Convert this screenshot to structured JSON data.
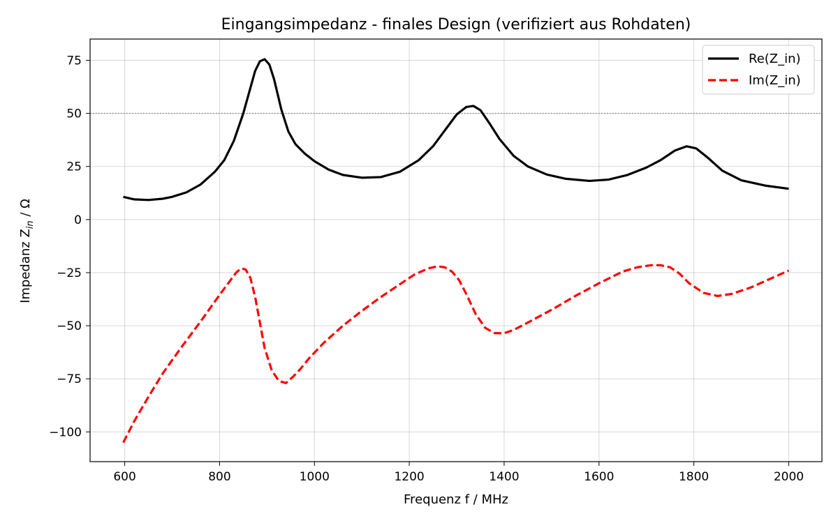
{
  "chart_data": {
    "type": "line",
    "title": "Eingangsimpedanz - finales Design (verifiziert aus Rohdaten)",
    "xlabel": "Frequenz f / MHz",
    "ylabel_main": "Impedanz Z",
    "ylabel_sub": "in",
    "ylabel_unit": " / Ω",
    "xlim": [
      527,
      2070
    ],
    "ylim": [
      -114,
      85
    ],
    "x_ticks": [
      600,
      800,
      1000,
      1200,
      1400,
      1600,
      1800,
      2000
    ],
    "x_tick_labels": [
      "600",
      "800",
      "1000",
      "1200",
      "1400",
      "1600",
      "1800",
      "2000"
    ],
    "y_ticks": [
      75,
      50,
      25,
      0,
      -25,
      -50,
      -75,
      -100
    ],
    "y_tick_labels": [
      "75",
      "50",
      "25",
      "0",
      "−25",
      "−50",
      "−75",
      "−100"
    ],
    "grid": true,
    "reference_line": {
      "y": 50,
      "color": "#808080",
      "style": "dotted"
    },
    "legend_position": "top-right",
    "series": [
      {
        "name": "Re(Z_in)",
        "color": "#000000",
        "style": "solid",
        "x": [
          597,
          620,
          650,
          680,
          700,
          730,
          760,
          790,
          810,
          830,
          850,
          865,
          875,
          885,
          895,
          905,
          915,
          930,
          945,
          960,
          980,
          1000,
          1030,
          1060,
          1100,
          1140,
          1180,
          1220,
          1250,
          1280,
          1300,
          1320,
          1335,
          1350,
          1370,
          1390,
          1420,
          1450,
          1490,
          1530,
          1580,
          1620,
          1660,
          1700,
          1730,
          1760,
          1785,
          1805,
          1830,
          1860,
          1900,
          1950,
          2000
        ],
        "y": [
          10.7,
          9.5,
          9.2,
          9.8,
          10.7,
          12.8,
          16.5,
          22.5,
          28,
          37,
          50,
          62,
          70,
          74.5,
          75.5,
          73,
          66,
          52,
          41.5,
          35.5,
          31,
          27.5,
          23.5,
          21,
          19.7,
          20,
          22.5,
          28,
          34.5,
          43.5,
          49.5,
          53,
          53.5,
          51.5,
          45,
          38,
          30,
          25,
          21.2,
          19.2,
          18.2,
          18.8,
          21,
          24.5,
          28,
          32.5,
          34.5,
          33.5,
          29,
          23,
          18.5,
          16,
          14.5
        ]
      },
      {
        "name": "Im(Z_in)",
        "color": "#ff0000",
        "style": "dashed",
        "x": [
          597,
          620,
          650,
          680,
          720,
          760,
          800,
          820,
          835,
          845,
          855,
          865,
          875,
          885,
          895,
          910,
          925,
          940,
          955,
          970,
          990,
          1020,
          1060,
          1100,
          1140,
          1180,
          1210,
          1240,
          1260,
          1275,
          1290,
          1305,
          1320,
          1340,
          1360,
          1380,
          1400,
          1420,
          1450,
          1500,
          1550,
          1600,
          1650,
          1680,
          1710,
          1730,
          1750,
          1770,
          1790,
          1820,
          1850,
          1880,
          1920,
          1960,
          2000
        ],
        "y": [
          -105,
          -95,
          -83.5,
          -72.5,
          -60,
          -48,
          -35.5,
          -29.5,
          -25,
          -23,
          -23.5,
          -27.5,
          -36.5,
          -48.5,
          -60.5,
          -71,
          -76,
          -77,
          -74,
          -70.5,
          -65,
          -58,
          -50,
          -43,
          -36.5,
          -30.5,
          -26,
          -23,
          -22,
          -22.5,
          -24.5,
          -28.5,
          -35,
          -44.5,
          -51,
          -53.5,
          -53.5,
          -52,
          -48.5,
          -42.5,
          -36,
          -30,
          -24.5,
          -22.5,
          -21.5,
          -21.5,
          -22.5,
          -25.5,
          -30,
          -34.5,
          -36,
          -35,
          -32,
          -28,
          -24
        ]
      }
    ]
  }
}
